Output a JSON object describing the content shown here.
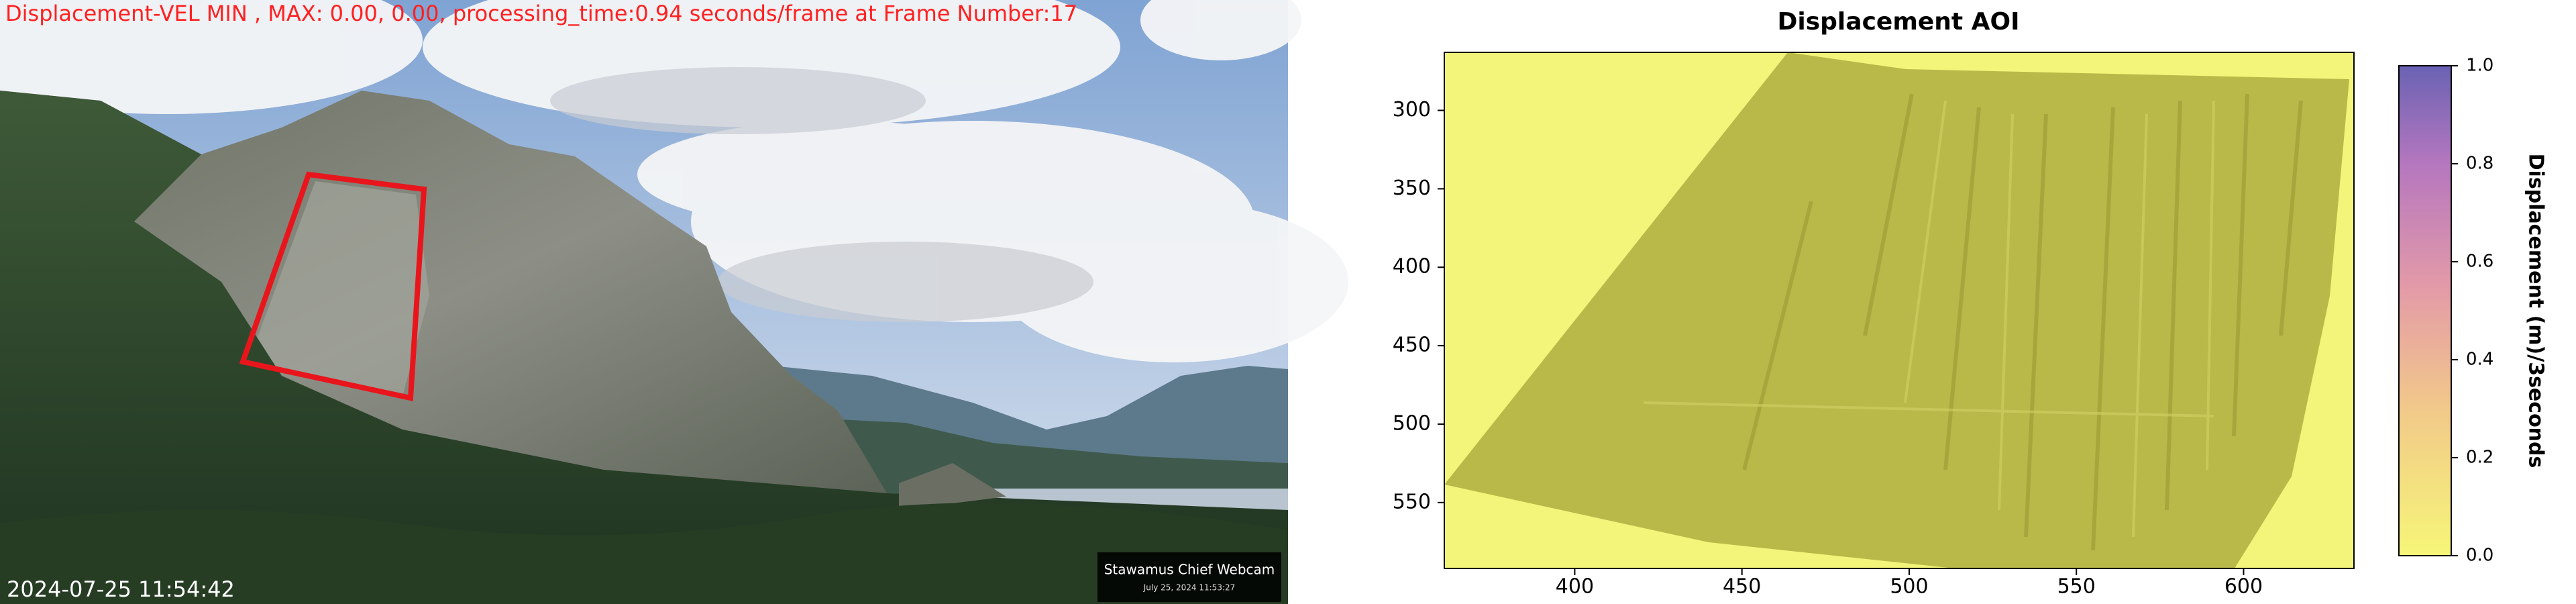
{
  "overlay": {
    "status": "Displacement-VEL MIN , MAX: 0.00, 0.00, processing_time:0.94 seconds/frame at Frame Number:17",
    "timestamp": "2024-07-25 11:54:42",
    "watermark_title": "Stawamus Chief Webcam",
    "watermark_date": "July 25, 2024 11:53:27"
  },
  "chart_data": {
    "type": "image",
    "title": "Displacement AOI",
    "xlim": [
      361,
      633
    ],
    "ylim": [
      592,
      263
    ],
    "xticks": [
      400,
      450,
      500,
      550,
      600
    ],
    "yticks": [
      300,
      350,
      400,
      450,
      500,
      550
    ],
    "colorbar": {
      "label": "Displacement (m)/3seconds",
      "lim": [
        0,
        1
      ],
      "ticks": [
        {
          "value": 0,
          "label": "0.0"
        },
        0.2,
        0.4,
        0.6,
        0.8,
        {
          "value": 1,
          "label": "1.0"
        }
      ]
    }
  }
}
